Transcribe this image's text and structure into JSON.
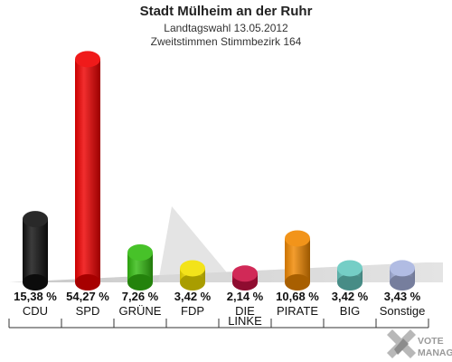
{
  "header": {
    "title": "Stadt Mülheim an der Ruhr",
    "subtitle1": "Landtagswahl 13.05.2012",
    "subtitle2": "Zweitstimmen Stimmbezirk 164"
  },
  "logo": {
    "line1": "VOTE",
    "line2": "MANAGER"
  },
  "chart_data": {
    "type": "bar",
    "title": "Stadt Mülheim an der Ruhr",
    "categories": [
      "CDU",
      "SPD",
      "GRÜNE",
      "FDP",
      "DIE LINKE",
      "PIRATE",
      "BIG",
      "Sonstige"
    ],
    "category_lines": [
      [
        "CDU"
      ],
      [
        "SPD"
      ],
      [
        "GRÜNE"
      ],
      [
        "FDP"
      ],
      [
        "DIE",
        "LINKE"
      ],
      [
        "PIRATE"
      ],
      [
        "BIG"
      ],
      [
        "Sonstige"
      ]
    ],
    "values": [
      15.38,
      54.27,
      7.26,
      3.42,
      2.14,
      10.68,
      3.42,
      3.43
    ],
    "value_labels": [
      "15,38 %",
      "54,27 %",
      "7,26 %",
      "3,42 %",
      "2,14 %",
      "10,68 %",
      "3,42 %",
      "3,43 %"
    ],
    "colors": [
      "#111111",
      "#ee0000",
      "#33bb11",
      "#f2e000",
      "#cc1144",
      "#f08800",
      "#66c8c0",
      "#a8b4e0"
    ],
    "ylim": [
      0,
      55
    ],
    "grid": false,
    "legend": "none"
  }
}
